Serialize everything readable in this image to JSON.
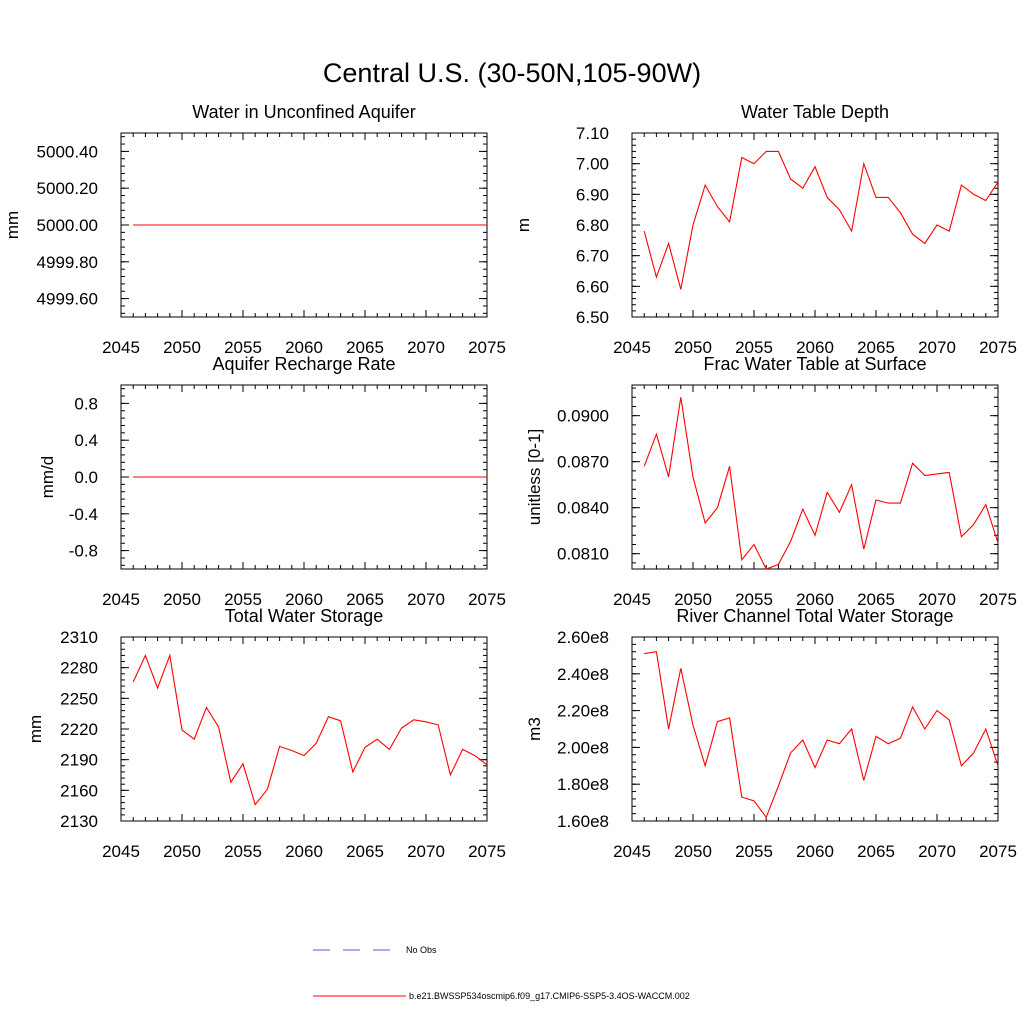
{
  "figure": {
    "title": "Central U.S. (30-50N,105-90W)"
  },
  "legend": {
    "items": [
      {
        "label": "No Obs",
        "color": "#5a5ad8",
        "style": "dashed"
      },
      {
        "label": "b.e21.BWSSP534oscmip6.f09_g17.CMIP6-SSP5-3.4OS-WACCM.002",
        "color": "#ff0000",
        "style": "solid"
      }
    ]
  },
  "chart_data": [
    {
      "type": "line",
      "title": "Water in Unconfined Aquifer",
      "ylabel": "mm",
      "xlim": [
        2045,
        2075
      ],
      "ylim": [
        4999.5,
        5000.5
      ],
      "xticks": [
        2045,
        2050,
        2055,
        2060,
        2065,
        2070,
        2075
      ],
      "yticks": [
        4999.6,
        4999.8,
        5000.0,
        5000.2,
        5000.4
      ],
      "ytick_labels": [
        "4999.60",
        "4999.80",
        "5000.00",
        "5000.20",
        "5000.40"
      ],
      "series": [
        {
          "color": "#ff0000",
          "x": [
            2046,
            2047,
            2048,
            2049,
            2050,
            2051,
            2052,
            2053,
            2054,
            2055,
            2056,
            2057,
            2058,
            2059,
            2060,
            2061,
            2062,
            2063,
            2064,
            2065,
            2066,
            2067,
            2068,
            2069,
            2070,
            2071,
            2072,
            2073,
            2074,
            2075
          ],
          "y": [
            5000,
            5000,
            5000,
            5000,
            5000,
            5000,
            5000,
            5000,
            5000,
            5000,
            5000,
            5000,
            5000,
            5000,
            5000,
            5000,
            5000,
            5000,
            5000,
            5000,
            5000,
            5000,
            5000,
            5000,
            5000,
            5000,
            5000,
            5000,
            5000,
            5000
          ]
        }
      ]
    },
    {
      "type": "line",
      "title": "Water Table Depth",
      "ylabel": "m",
      "xlim": [
        2045,
        2075
      ],
      "ylim": [
        6.5,
        7.1
      ],
      "xticks": [
        2045,
        2050,
        2055,
        2060,
        2065,
        2070,
        2075
      ],
      "yticks": [
        6.5,
        6.6,
        6.7,
        6.8,
        6.9,
        7.0,
        7.1
      ],
      "ytick_labels": [
        "6.50",
        "6.60",
        "6.70",
        "6.80",
        "6.90",
        "7.00",
        "7.10"
      ],
      "series": [
        {
          "color": "#ff0000",
          "x": [
            2046,
            2047,
            2048,
            2049,
            2050,
            2051,
            2052,
            2053,
            2054,
            2055,
            2056,
            2057,
            2058,
            2059,
            2060,
            2061,
            2062,
            2063,
            2064,
            2065,
            2066,
            2067,
            2068,
            2069,
            2070,
            2071,
            2072,
            2073,
            2074,
            2075
          ],
          "y": [
            6.78,
            6.63,
            6.74,
            6.59,
            6.8,
            6.93,
            6.86,
            6.81,
            7.02,
            7.0,
            7.04,
            7.04,
            6.95,
            6.92,
            6.99,
            6.89,
            6.85,
            6.78,
            7.0,
            6.89,
            6.89,
            6.84,
            6.77,
            6.74,
            6.8,
            6.78,
            6.93,
            6.9,
            6.88,
            6.94
          ]
        }
      ]
    },
    {
      "type": "line",
      "title": "Aquifer Recharge Rate",
      "ylabel": "mm/d",
      "xlim": [
        2045,
        2075
      ],
      "ylim": [
        -1.0,
        1.0
      ],
      "xticks": [
        2045,
        2050,
        2055,
        2060,
        2065,
        2070,
        2075
      ],
      "yticks": [
        -0.8,
        -0.4,
        0.0,
        0.4,
        0.8
      ],
      "ytick_labels": [
        "-0.8",
        "-0.4",
        "0.0",
        "0.4",
        "0.8"
      ],
      "series": [
        {
          "color": "#ff0000",
          "x": [
            2046,
            2047,
            2048,
            2049,
            2050,
            2051,
            2052,
            2053,
            2054,
            2055,
            2056,
            2057,
            2058,
            2059,
            2060,
            2061,
            2062,
            2063,
            2064,
            2065,
            2066,
            2067,
            2068,
            2069,
            2070,
            2071,
            2072,
            2073,
            2074,
            2075
          ],
          "y": [
            0,
            0,
            0,
            0,
            0,
            0,
            0,
            0,
            0,
            0,
            0,
            0,
            0,
            0,
            0,
            0,
            0,
            0,
            0,
            0,
            0,
            0,
            0,
            0,
            0,
            0,
            0,
            0,
            0,
            0
          ]
        }
      ]
    },
    {
      "type": "line",
      "title": "Frac Water Table at Surface",
      "ylabel": "unitless [0-1]",
      "xlim": [
        2045,
        2075
      ],
      "ylim": [
        0.08,
        0.092
      ],
      "xticks": [
        2045,
        2050,
        2055,
        2060,
        2065,
        2070,
        2075
      ],
      "yticks": [
        0.081,
        0.084,
        0.087,
        0.09
      ],
      "ytick_labels": [
        "0.0810",
        "0.0840",
        "0.0870",
        "0.0900"
      ],
      "series": [
        {
          "color": "#ff0000",
          "x": [
            2046,
            2047,
            2048,
            2049,
            2050,
            2051,
            2052,
            2053,
            2054,
            2055,
            2056,
            2057,
            2058,
            2059,
            2060,
            2061,
            2062,
            2063,
            2064,
            2065,
            2066,
            2067,
            2068,
            2069,
            2070,
            2071,
            2072,
            2073,
            2074,
            2075
          ],
          "y": [
            0.0867,
            0.0888,
            0.086,
            0.0912,
            0.086,
            0.083,
            0.084,
            0.0867,
            0.0806,
            0.0816,
            0.08,
            0.0803,
            0.0818,
            0.0839,
            0.0822,
            0.085,
            0.0837,
            0.0855,
            0.0813,
            0.0845,
            0.0843,
            0.0843,
            0.0869,
            0.0861,
            0.0862,
            0.0863,
            0.0821,
            0.0829,
            0.0842,
            0.0817
          ]
        }
      ]
    },
    {
      "type": "line",
      "title": "Total Water Storage",
      "ylabel": "mm",
      "xlim": [
        2045,
        2075
      ],
      "ylim": [
        2130,
        2310
      ],
      "xticks": [
        2045,
        2050,
        2055,
        2060,
        2065,
        2070,
        2075
      ],
      "yticks": [
        2130,
        2160,
        2190,
        2220,
        2250,
        2280,
        2310
      ],
      "ytick_labels": [
        "2130",
        "2160",
        "2190",
        "2220",
        "2250",
        "2280",
        "2310"
      ],
      "series": [
        {
          "color": "#ff0000",
          "x": [
            2046,
            2047,
            2048,
            2049,
            2050,
            2051,
            2052,
            2053,
            2054,
            2055,
            2056,
            2057,
            2058,
            2059,
            2060,
            2061,
            2062,
            2063,
            2064,
            2065,
            2066,
            2067,
            2068,
            2069,
            2070,
            2071,
            2072,
            2073,
            2074,
            2075
          ],
          "y": [
            2266,
            2292,
            2260,
            2292,
            2219,
            2210,
            2241,
            2222,
            2168,
            2186,
            2146,
            2161,
            2203,
            2199,
            2194,
            2206,
            2232,
            2228,
            2178,
            2202,
            2210,
            2200,
            2221,
            2229,
            2227,
            2224,
            2175,
            2200,
            2194,
            2185
          ]
        }
      ]
    },
    {
      "type": "line",
      "title": "River Channel Total Water Storage",
      "ylabel": "m3",
      "xlim": [
        2045,
        2075
      ],
      "ylim": [
        160000000.0,
        260000000.0
      ],
      "xticks": [
        2045,
        2050,
        2055,
        2060,
        2065,
        2070,
        2075
      ],
      "yticks": [
        160000000.0,
        180000000.0,
        200000000.0,
        220000000.0,
        240000000.0,
        260000000.0
      ],
      "ytick_labels": [
        "1.60e8",
        "1.80e8",
        "2.00e8",
        "2.20e8",
        "2.40e8",
        "2.60e8"
      ],
      "series": [
        {
          "color": "#ff0000",
          "x": [
            2046,
            2047,
            2048,
            2049,
            2050,
            2051,
            2052,
            2053,
            2054,
            2055,
            2056,
            2057,
            2058,
            2059,
            2060,
            2061,
            2062,
            2063,
            2064,
            2065,
            2066,
            2067,
            2068,
            2069,
            2070,
            2071,
            2072,
            2073,
            2074,
            2075
          ],
          "y": [
            251000000.0,
            252000000.0,
            210000000.0,
            243000000.0,
            212000000.0,
            190000000.0,
            214000000.0,
            216000000.0,
            173000000.0,
            171000000.0,
            162000000.0,
            179000000.0,
            197000000.0,
            204000000.0,
            189000000.0,
            204000000.0,
            202000000.0,
            210000000.0,
            182000000.0,
            206000000.0,
            202000000.0,
            205000000.0,
            222000000.0,
            210000000.0,
            220000000.0,
            215000000.0,
            190000000.0,
            197000000.0,
            210000000.0,
            190000000.0
          ]
        }
      ]
    }
  ]
}
